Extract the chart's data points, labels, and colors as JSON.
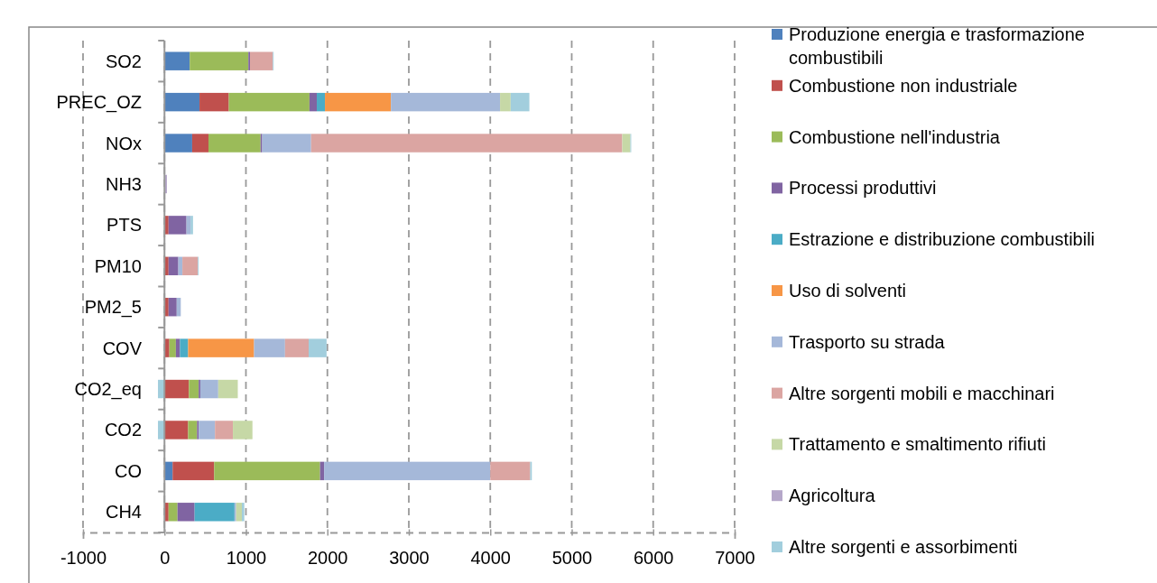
{
  "chart_data": {
    "type": "bar",
    "orientation": "horizontal",
    "stacked": true,
    "categories": [
      "SO2",
      "PREC_OZ",
      "NOx",
      "NH3",
      "PTS",
      "PM10",
      "PM2_5",
      "COV",
      "CO2_eq",
      "CO2",
      "CO",
      "CH4"
    ],
    "xlim": [
      -1000,
      7000
    ],
    "xticks": [
      -1000,
      0,
      1000,
      2000,
      3000,
      4000,
      5000,
      6000,
      7000
    ],
    "grid": "x",
    "legend": "right",
    "series": [
      {
        "name": "Produzione energia e trasformazione combustibili",
        "color": "#4f81bd",
        "values": [
          310,
          430,
          340,
          0,
          0,
          0,
          0,
          0,
          0,
          0,
          100,
          0
        ]
      },
      {
        "name": "Combustione non industriale",
        "color": "#c0504d",
        "values": [
          0,
          360,
          200,
          0,
          50,
          50,
          50,
          60,
          300,
          290,
          510,
          50
        ]
      },
      {
        "name": "Combustione nell'industria",
        "color": "#9bbb59",
        "values": [
          720,
          990,
          640,
          0,
          0,
          0,
          0,
          80,
          120,
          110,
          1300,
          110
        ]
      },
      {
        "name": "Processi produttivi",
        "color": "#8064a2",
        "values": [
          20,
          90,
          20,
          0,
          220,
          120,
          100,
          50,
          20,
          20,
          50,
          210
        ]
      },
      {
        "name": "Estrazione e distribuzione combustibili",
        "color": "#4bacc6",
        "values": [
          0,
          100,
          0,
          0,
          0,
          0,
          0,
          100,
          0,
          0,
          0,
          490
        ]
      },
      {
        "name": "Uso di solventi",
        "color": "#f79646",
        "values": [
          0,
          810,
          0,
          0,
          0,
          0,
          0,
          810,
          0,
          0,
          0,
          0
        ]
      },
      {
        "name": "Trasporto su strada",
        "color": "#a5b8d9",
        "values": [
          0,
          1340,
          600,
          0,
          50,
          50,
          50,
          380,
          220,
          200,
          2040,
          20
        ]
      },
      {
        "name": "Altre sorgenti mobili e macchinari",
        "color": "#dba5a2",
        "values": [
          280,
          0,
          3820,
          0,
          0,
          190,
          0,
          290,
          0,
          220,
          490,
          0
        ]
      },
      {
        "name": "Trattamento e smaltimento rifiuti",
        "color": "#c6d8a6",
        "values": [
          0,
          130,
          100,
          0,
          0,
          0,
          0,
          0,
          240,
          240,
          0,
          70
        ]
      },
      {
        "name": "Agricoltura",
        "color": "#b5a7c9",
        "values": [
          0,
          0,
          0,
          30,
          0,
          0,
          0,
          0,
          0,
          0,
          0,
          0
        ]
      },
      {
        "name": "Altre sorgenti e assorbimenti",
        "color": "#a2cedd",
        "values": [
          10,
          230,
          10,
          0,
          30,
          10,
          0,
          220,
          -80,
          -80,
          20,
          30
        ]
      }
    ]
  }
}
